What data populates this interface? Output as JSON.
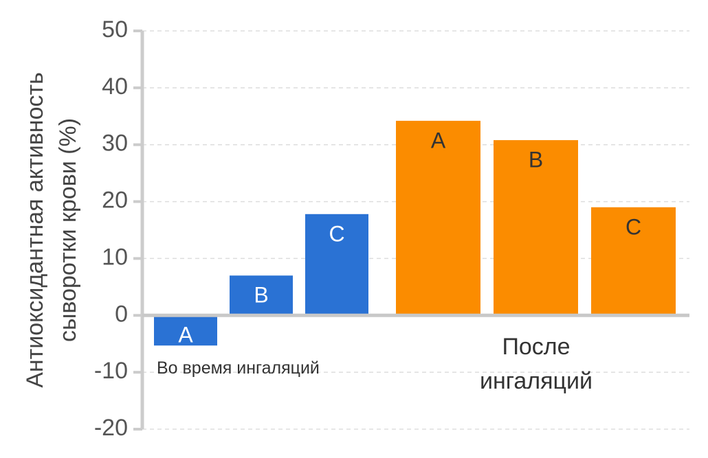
{
  "chart_data": {
    "type": "bar",
    "y_label": "Антиоксидантная активность сыворотки крови (%)",
    "categories": [
      "A",
      "B",
      "C"
    ],
    "series": [
      {
        "name": "Во время ингаляций",
        "color": "#2a72d4",
        "values": [
          -5.3,
          7,
          17.8
        ]
      },
      {
        "name": "После ингаляций",
        "color": "#fb8c00",
        "values": [
          34.2,
          30.8,
          19
        ]
      }
    ],
    "ylim": [
      -20,
      50
    ],
    "yticks": [
      -20,
      -10,
      0,
      10,
      20,
      30,
      40,
      50
    ],
    "grid": true
  }
}
